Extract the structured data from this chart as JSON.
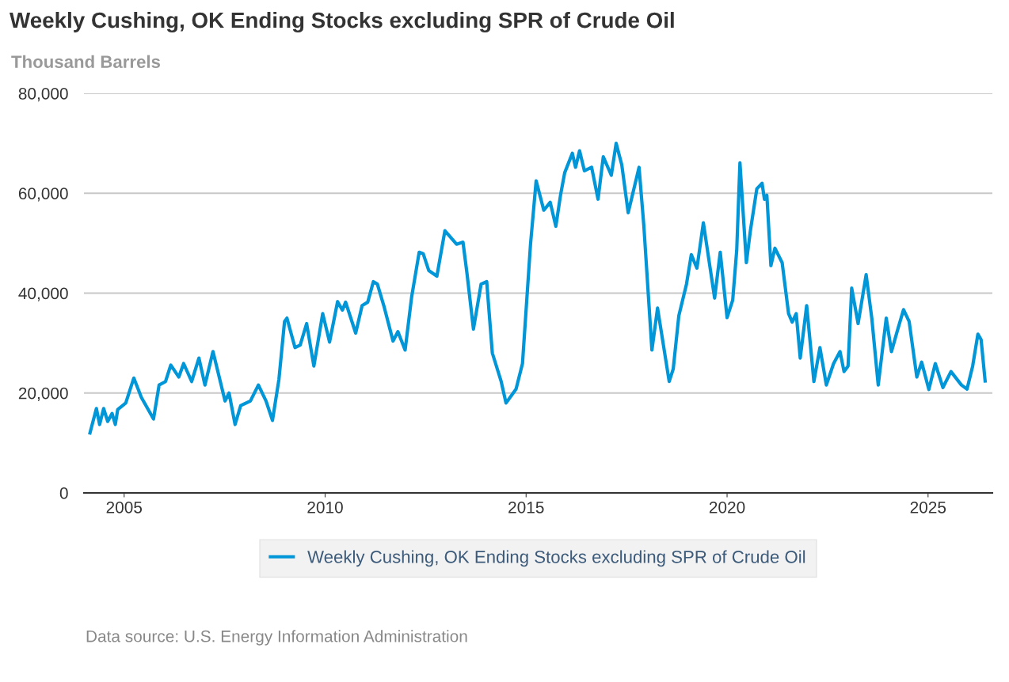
{
  "chart_data": {
    "type": "line",
    "title": "Weekly Cushing, OK Ending Stocks excluding SPR of Crude Oil",
    "ylabel": "Thousand Barrels",
    "annotations": [
      "Data source: U.S. Energy Information Administration"
    ],
    "xlim": [
      2004.0,
      2026.6
    ],
    "xticks": [
      2005,
      2010,
      2015,
      2020,
      2025
    ],
    "ylim": [
      0,
      80000
    ],
    "yticks": [
      0,
      {
        "value": 20000,
        "label": "20,000"
      },
      {
        "value": 40000,
        "label": "40,000"
      },
      {
        "value": 60000,
        "label": "60,000"
      },
      {
        "value": 80000,
        "label": "80,000"
      }
    ],
    "grid": "y",
    "legend": "bottom",
    "marker": "none",
    "line_style": "solid",
    "series": [
      {
        "name": "Weekly Cushing, OK Ending Stocks excluding SPR of Crude Oil",
        "color": "#0096d7",
        "x": [
          2004.15,
          2004.31,
          2004.39,
          2004.49,
          2004.59,
          2004.7,
          2004.78,
          2004.84,
          2005.04,
          2005.24,
          2005.43,
          2005.73,
          2005.87,
          2006.03,
          2006.16,
          2006.36,
          2006.48,
          2006.68,
          2006.86,
          2007.01,
          2007.21,
          2007.51,
          2007.61,
          2007.76,
          2007.9,
          2008.14,
          2008.34,
          2008.53,
          2008.69,
          2008.85,
          2008.99,
          2009.05,
          2009.25,
          2009.38,
          2009.54,
          2009.72,
          2009.94,
          2010.11,
          2010.31,
          2010.43,
          2010.51,
          2010.76,
          2010.92,
          2011.06,
          2011.2,
          2011.3,
          2011.46,
          2011.69,
          2011.81,
          2011.99,
          2012.15,
          2012.34,
          2012.44,
          2012.58,
          2012.78,
          2012.98,
          2013.27,
          2013.43,
          2013.53,
          2013.69,
          2013.88,
          2014.02,
          2014.16,
          2014.38,
          2014.5,
          2014.75,
          2014.91,
          2015.11,
          2015.25,
          2015.44,
          2015.6,
          2015.74,
          2015.86,
          2015.96,
          2016.15,
          2016.23,
          2016.33,
          2016.45,
          2016.63,
          2016.79,
          2016.92,
          2017.12,
          2017.24,
          2017.38,
          2017.54,
          2017.81,
          2017.93,
          2018.13,
          2018.27,
          2018.56,
          2018.66,
          2018.8,
          2018.99,
          2019.11,
          2019.25,
          2019.41,
          2019.69,
          2019.83,
          2020.0,
          2020.14,
          2020.24,
          2020.32,
          2020.48,
          2020.58,
          2020.74,
          2020.87,
          2020.93,
          2020.99,
          2021.09,
          2021.19,
          2021.37,
          2021.53,
          2021.62,
          2021.72,
          2021.82,
          2021.98,
          2022.16,
          2022.31,
          2022.47,
          2022.65,
          2022.81,
          2022.91,
          2023.01,
          2023.1,
          2023.26,
          2023.46,
          2023.6,
          2023.76,
          2023.96,
          2024.09,
          2024.23,
          2024.39,
          2024.53,
          2024.72,
          2024.84,
          2025.02,
          2025.18,
          2025.37,
          2025.57,
          2025.83,
          2025.97,
          2026.11,
          2026.24,
          2026.32,
          2026.42
        ],
        "values": [
          12000,
          16900,
          13700,
          16900,
          14300,
          15900,
          13700,
          16700,
          18000,
          23000,
          19100,
          14800,
          21600,
          22300,
          25600,
          23200,
          25900,
          22300,
          27000,
          21600,
          28300,
          18400,
          20000,
          13700,
          17500,
          18400,
          21600,
          18400,
          14500,
          22700,
          34300,
          35000,
          29100,
          29600,
          33900,
          25400,
          35900,
          30200,
          38300,
          36600,
          38200,
          32000,
          37500,
          38200,
          42300,
          41800,
          37500,
          30400,
          32300,
          28600,
          39100,
          48200,
          47900,
          44500,
          43400,
          52500,
          49800,
          50200,
          43900,
          32800,
          41800,
          42300,
          28000,
          22300,
          18000,
          20800,
          25900,
          49800,
          62500,
          56600,
          58200,
          53400,
          59800,
          64100,
          68000,
          65200,
          68500,
          64500,
          65200,
          58800,
          67300,
          63600,
          70000,
          65700,
          56100,
          65200,
          53400,
          28600,
          37000,
          22300,
          24800,
          35500,
          41800,
          47700,
          45000,
          54100,
          39000,
          48200,
          35100,
          38600,
          48600,
          66100,
          46100,
          52500,
          60900,
          62000,
          58800,
          59600,
          45500,
          49000,
          46100,
          35900,
          34200,
          35900,
          27000,
          37500,
          22300,
          29100,
          21600,
          25900,
          28300,
          24300,
          25400,
          41000,
          33900,
          43700,
          35000,
          21600,
          35000,
          28300,
          32300,
          36700,
          34300,
          23200,
          26200,
          20700,
          25900,
          21100,
          24300,
          21600,
          20800,
          25400,
          31800,
          30700,
          22400
        ]
      }
    ]
  }
}
